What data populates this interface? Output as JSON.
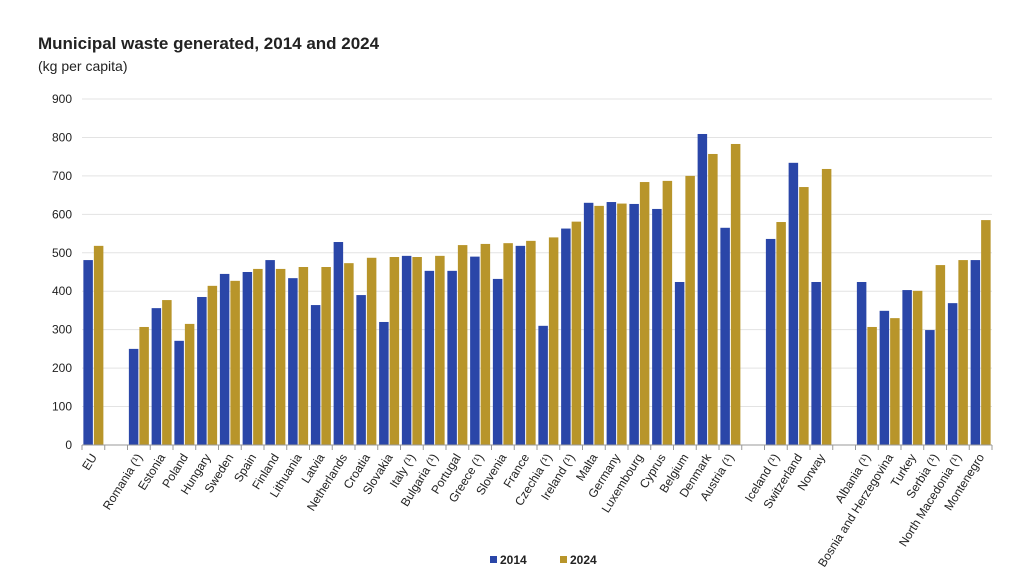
{
  "chart_data": {
    "type": "bar",
    "title": "Municipal waste generated, 2014 and 2024",
    "subtitle": "(kg per capita)",
    "ylim": [
      0,
      900
    ],
    "yticks": [
      0,
      100,
      200,
      300,
      400,
      500,
      600,
      700,
      800,
      900
    ],
    "grid": true,
    "legend_placement": "bottom",
    "categories": [
      "EU",
      "",
      "Romania (¹)",
      "Estonia",
      "Poland",
      "Hungary",
      "Sweden",
      "Spain",
      "Finland",
      "Lithuania",
      "Latvia",
      "Netherlands",
      "Croatia",
      "Slovakia",
      "Italy (¹)",
      "Bulgaria (¹)",
      "Portugal",
      "Greece (¹)",
      "Slovenia",
      "France",
      "Czechia (¹)",
      "Ireland (¹)",
      "Malta",
      "Germany",
      "Luxembourg",
      "Cyprus",
      "Belgium",
      "Denmark",
      "Austria (¹)",
      "",
      "Iceland (¹)",
      "Switzerland",
      "Norway",
      "",
      "Albania (¹)",
      "Bosnia and Herzegovina",
      "Turkey",
      "Serbia (¹)",
      "North Macedonia (¹)",
      "Montenegro"
    ],
    "series": [
      {
        "name": "2014",
        "color": "#2a46a8",
        "values": [
          481,
          null,
          250,
          356,
          271,
          385,
          445,
          450,
          481,
          434,
          364,
          528,
          390,
          320,
          492,
          453,
          453,
          490,
          432,
          518,
          310,
          563,
          630,
          632,
          627,
          614,
          424,
          809,
          565,
          null,
          536,
          734,
          424,
          null,
          424,
          349,
          403,
          299,
          369,
          481
        ]
      },
      {
        "name": "2024",
        "color": "#b8952a",
        "values": [
          518,
          null,
          307,
          377,
          315,
          414,
          427,
          458,
          458,
          463,
          463,
          473,
          487,
          489,
          489,
          492,
          520,
          523,
          525,
          531,
          540,
          581,
          622,
          628,
          684,
          687,
          700,
          757,
          783,
          null,
          580,
          671,
          718,
          null,
          307,
          330,
          401,
          468,
          481,
          585
        ]
      }
    ]
  }
}
